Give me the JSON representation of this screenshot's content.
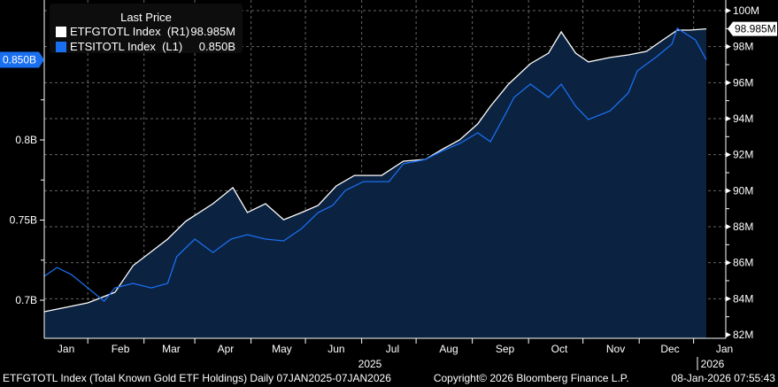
{
  "chart_data": {
    "type": "line",
    "title": "Last Price",
    "x_unit": "days since 07JAN2025",
    "series": [
      {
        "name": "ETFGTOTL Index",
        "axis": "R1",
        "last_value": "98.985M",
        "color": "#ffffff",
        "x": [
          0,
          24,
          39,
          49,
          68,
          78,
          93,
          104,
          112,
          122,
          132,
          142,
          151,
          161,
          171,
          186,
          198,
          210,
          220,
          229,
          239,
          246,
          256,
          268,
          278,
          285,
          293,
          300,
          312,
          322,
          332,
          339,
          349,
          356,
          365
        ],
        "y": [
          83.28,
          83.77,
          84.36,
          85.84,
          87.31,
          88.3,
          89.28,
          90.17,
          88.79,
          89.28,
          88.39,
          88.79,
          89.18,
          90.26,
          90.85,
          90.85,
          91.64,
          91.74,
          92.33,
          92.82,
          93.71,
          94.69,
          95.92,
          97.05,
          97.64,
          98.82,
          97.64,
          97.15,
          97.4,
          97.54,
          97.74,
          98.23,
          98.92,
          98.92,
          98.985
        ]
      },
      {
        "name": "ETSITOTL Index",
        "axis": "L1",
        "last_value": "0.850B",
        "color": "#1a6ff0",
        "x": [
          0,
          7,
          15,
          24,
          33,
          39,
          49,
          59,
          68,
          73,
          83,
          93,
          103,
          112,
          122,
          132,
          142,
          151,
          159,
          166,
          176,
          190,
          198,
          210,
          220,
          229,
          239,
          246,
          254,
          259,
          268,
          278,
          285,
          293,
          300,
          312,
          322,
          327,
          337,
          346,
          349,
          359,
          365
        ],
        "y": [
          0.7149,
          0.7204,
          0.716,
          0.7077,
          0.6994,
          0.7077,
          0.7105,
          0.7077,
          0.7105,
          0.7271,
          0.7381,
          0.7298,
          0.7381,
          0.7409,
          0.7381,
          0.737,
          0.7448,
          0.7547,
          0.7591,
          0.7685,
          0.774,
          0.774,
          0.7851,
          0.7878,
          0.7934,
          0.7978,
          0.8044,
          0.7989,
          0.8155,
          0.8265,
          0.8348,
          0.8265,
          0.8348,
          0.821,
          0.8127,
          0.8182,
          0.8293,
          0.8431,
          0.8514,
          0.8597,
          0.8696,
          0.8624,
          0.85
        ]
      }
    ],
    "right_axis": {
      "range": [
        82,
        100.2
      ],
      "ticks": [
        82,
        84,
        86,
        88,
        90,
        92,
        94,
        96,
        98,
        100
      ],
      "tick_labels": [
        "82M",
        "84M",
        "86M",
        "88M",
        "90M",
        "92M",
        "94M",
        "96M",
        "98M",
        "100M"
      ]
    },
    "left_axis": {
      "range": [
        0.679,
        0.8875
      ],
      "ticks": [
        0.7,
        0.75,
        0.8
      ],
      "tick_labels": [
        "0.7B",
        "0.75B",
        "0.8B"
      ]
    },
    "x_ticks": {
      "days": [
        12,
        42,
        70,
        100,
        131,
        161,
        192,
        223,
        254,
        284,
        315,
        345,
        375
      ],
      "labels": [
        "Jan",
        "Feb",
        "Mar",
        "Apr",
        "May",
        "Jun",
        "Jul",
        "Aug",
        "Sep",
        "Oct",
        "Nov",
        "Dec",
        "Jan"
      ]
    },
    "year_labels": [
      "2025",
      "2026"
    ],
    "legend": {
      "title": "Last Price",
      "placement": "top-left"
    },
    "grid": true
  },
  "footer": {
    "description": "ETFGTOTL Index (Total Known Gold ETF Holdings) Daily 07JAN2025-07JAN2026",
    "copyright": "Copyright© 2026 Bloomberg Finance L.P.",
    "timestamp": "08-Jan-2026 07:55:43"
  },
  "legend_rows": [
    {
      "name": "ETFGTOTL Index",
      "axis": "(R1)",
      "value": "98.985M"
    },
    {
      "name": "ETSITOTL Index",
      "axis": "(L1)",
      "value": "0.850B"
    }
  ]
}
